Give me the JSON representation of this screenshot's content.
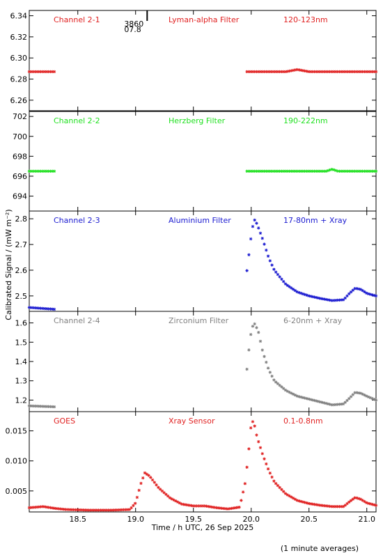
{
  "footer_note": "(1 minute averages)",
  "chart_data": {
    "type": "scatter",
    "xlabel": "Time / h UTC, 26 Sep 2025",
    "ylabel": "Calibrated Signal / (mW m⁻²)",
    "xlim": [
      18.08,
      21.08
    ],
    "x_ticks": [
      18.5,
      19.0,
      19.5,
      20.0,
      20.5,
      21.0
    ],
    "x_tick_labels": [
      "18.5",
      "19.0",
      "19.5",
      "20.0",
      "20.5",
      "21.0"
    ],
    "marker": "asterisk",
    "panels": [
      {
        "id": "channel-2-1",
        "color": "#e02020",
        "labels": [
          "Channel 2-1",
          "Lyman-alpha Filter",
          "120-123nm"
        ],
        "ylim": [
          6.25,
          6.345
        ],
        "y_ticks": [
          6.26,
          6.28,
          6.3,
          6.32,
          6.34
        ],
        "y_tick_labels": [
          "6.26",
          "6.28",
          "6.30",
          "6.32",
          "6.34"
        ],
        "annotation": {
          "x": 19.1,
          "text_top": "3860",
          "text_bottom": "07.8"
        },
        "series": {
          "gap": [
            18.3,
            19.95
          ],
          "points": [
            [
              18.08,
              6.287
            ],
            [
              18.3,
              6.287
            ],
            [
              19.95,
              6.287
            ],
            [
              20.3,
              6.287
            ],
            [
              20.4,
              6.289
            ],
            [
              20.5,
              6.287
            ],
            [
              21.08,
              6.287
            ]
          ]
        }
      },
      {
        "id": "channel-2-2",
        "color": "#20e020",
        "labels": [
          "Channel 2-2",
          "Herzberg Filter",
          "190-222nm"
        ],
        "ylim": [
          692.5,
          702.5
        ],
        "y_ticks": [
          694,
          696,
          698,
          700,
          702
        ],
        "y_tick_labels": [
          "694",
          "696",
          "698",
          "700",
          "702"
        ],
        "series": {
          "gap": [
            18.3,
            19.95
          ],
          "points": [
            [
              18.08,
              696.5
            ],
            [
              18.3,
              696.5
            ],
            [
              19.95,
              696.5
            ],
            [
              20.65,
              696.5
            ],
            [
              20.7,
              696.7
            ],
            [
              20.75,
              696.5
            ],
            [
              21.08,
              696.5
            ]
          ]
        }
      },
      {
        "id": "channel-2-3",
        "color": "#1a1ad0",
        "labels": [
          "Channel 2-3",
          "Aluminium Filter",
          "17-80nm + Xray"
        ],
        "ylim": [
          2.44,
          2.83
        ],
        "y_ticks": [
          2.5,
          2.6,
          2.7,
          2.8
        ],
        "y_tick_labels": [
          "2.5",
          "2.6",
          "2.7",
          "2.8"
        ],
        "series": {
          "gap": [
            18.3,
            19.95
          ],
          "points": [
            [
              18.08,
              2.455
            ],
            [
              18.3,
              2.448
            ],
            [
              19.95,
              2.555
            ],
            [
              19.97,
              2.62
            ],
            [
              19.99,
              2.7
            ],
            [
              20.01,
              2.765
            ],
            [
              20.03,
              2.795
            ],
            [
              20.05,
              2.78
            ],
            [
              20.1,
              2.72
            ],
            [
              20.15,
              2.65
            ],
            [
              20.2,
              2.6
            ],
            [
              20.3,
              2.545
            ],
            [
              20.4,
              2.515
            ],
            [
              20.5,
              2.5
            ],
            [
              20.6,
              2.49
            ],
            [
              20.7,
              2.482
            ],
            [
              20.8,
              2.485
            ],
            [
              20.85,
              2.51
            ],
            [
              20.9,
              2.53
            ],
            [
              20.95,
              2.525
            ],
            [
              21.0,
              2.51
            ],
            [
              21.08,
              2.5
            ]
          ]
        }
      },
      {
        "id": "channel-2-4",
        "color": "#808080",
        "labels": [
          "Channel 2-4",
          "Zirconium Filter",
          "6-20nm + Xray"
        ],
        "ylim": [
          1.14,
          1.66
        ],
        "y_ticks": [
          1.2,
          1.3,
          1.4,
          1.5,
          1.6
        ],
        "y_tick_labels": [
          "1.2",
          "1.3",
          "1.4",
          "1.5",
          "1.6"
        ],
        "series": {
          "gap": [
            18.3,
            19.95
          ],
          "points": [
            [
              18.08,
              1.17
            ],
            [
              18.3,
              1.165
            ],
            [
              19.95,
              1.28
            ],
            [
              19.97,
              1.4
            ],
            [
              19.99,
              1.52
            ],
            [
              20.01,
              1.58
            ],
            [
              20.03,
              1.595
            ],
            [
              20.06,
              1.56
            ],
            [
              20.1,
              1.45
            ],
            [
              20.15,
              1.36
            ],
            [
              20.2,
              1.3
            ],
            [
              20.3,
              1.25
            ],
            [
              20.4,
              1.22
            ],
            [
              20.5,
              1.205
            ],
            [
              20.6,
              1.19
            ],
            [
              20.7,
              1.175
            ],
            [
              20.8,
              1.18
            ],
            [
              20.85,
              1.21
            ],
            [
              20.9,
              1.24
            ],
            [
              20.95,
              1.235
            ],
            [
              21.0,
              1.22
            ],
            [
              21.08,
              1.2
            ]
          ]
        }
      },
      {
        "id": "goes",
        "color": "#e02020",
        "labels": [
          "GOES",
          "Xray Sensor",
          "0.1-0.8nm"
        ],
        "ylim": [
          0.0015,
          0.0182
        ],
        "y_ticks": [
          0.005,
          0.01,
          0.015
        ],
        "y_tick_labels": [
          "0.005",
          "0.010",
          "0.015"
        ],
        "series": {
          "gap": null,
          "points": [
            [
              18.08,
              0.0022
            ],
            [
              18.2,
              0.0024
            ],
            [
              18.3,
              0.0021
            ],
            [
              18.4,
              0.0019
            ],
            [
              18.6,
              0.0018
            ],
            [
              18.8,
              0.0018
            ],
            [
              18.95,
              0.0019
            ],
            [
              19.0,
              0.003
            ],
            [
              19.05,
              0.0065
            ],
            [
              19.08,
              0.008
            ],
            [
              19.12,
              0.0075
            ],
            [
              19.2,
              0.0055
            ],
            [
              19.3,
              0.0038
            ],
            [
              19.4,
              0.0028
            ],
            [
              19.5,
              0.0025
            ],
            [
              19.6,
              0.0025
            ],
            [
              19.7,
              0.0022
            ],
            [
              19.8,
              0.002
            ],
            [
              19.9,
              0.0023
            ],
            [
              19.95,
              0.0065
            ],
            [
              19.98,
              0.012
            ],
            [
              20.0,
              0.0162
            ],
            [
              20.02,
              0.0167
            ],
            [
              20.05,
              0.014
            ],
            [
              20.1,
              0.011
            ],
            [
              20.15,
              0.0085
            ],
            [
              20.2,
              0.0065
            ],
            [
              20.3,
              0.0045
            ],
            [
              20.4,
              0.0034
            ],
            [
              20.5,
              0.0029
            ],
            [
              20.6,
              0.0026
            ],
            [
              20.7,
              0.0024
            ],
            [
              20.8,
              0.0024
            ],
            [
              20.85,
              0.0032
            ],
            [
              20.9,
              0.0039
            ],
            [
              20.95,
              0.0036
            ],
            [
              21.0,
              0.003
            ],
            [
              21.08,
              0.0026
            ]
          ]
        }
      }
    ]
  }
}
